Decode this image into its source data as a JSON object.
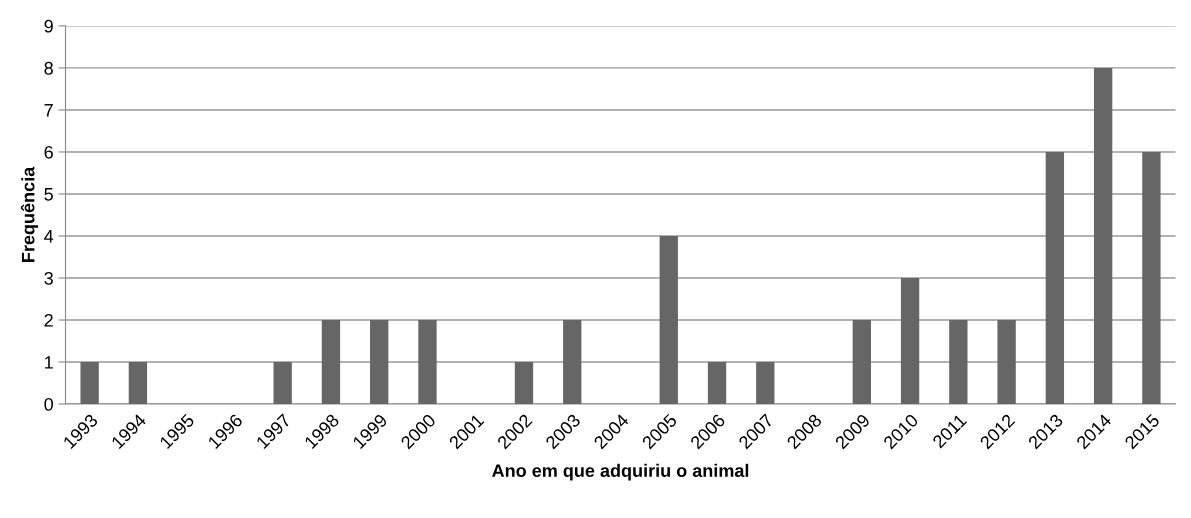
{
  "chart_data": {
    "type": "bar",
    "xlabel": "Ano em que adquiriu o animal",
    "ylabel": "Frequência",
    "categories": [
      "1993",
      "1994",
      "1995",
      "1996",
      "1997",
      "1998",
      "1999",
      "2000",
      "2001",
      "2002",
      "2003",
      "2004",
      "2005",
      "2006",
      "2007",
      "2008",
      "2009",
      "2010",
      "2011",
      "2012",
      "2013",
      "2014",
      "2015"
    ],
    "values": [
      1,
      1,
      0,
      0,
      1,
      2,
      2,
      2,
      0,
      1,
      2,
      0,
      4,
      1,
      1,
      0,
      2,
      3,
      2,
      2,
      6,
      8,
      6
    ],
    "color": "#666666",
    "ylim": [
      0,
      9
    ],
    "yticks": [
      0,
      1,
      2,
      3,
      4,
      5,
      6,
      7,
      8,
      9
    ],
    "grid": "y",
    "legend": false
  }
}
